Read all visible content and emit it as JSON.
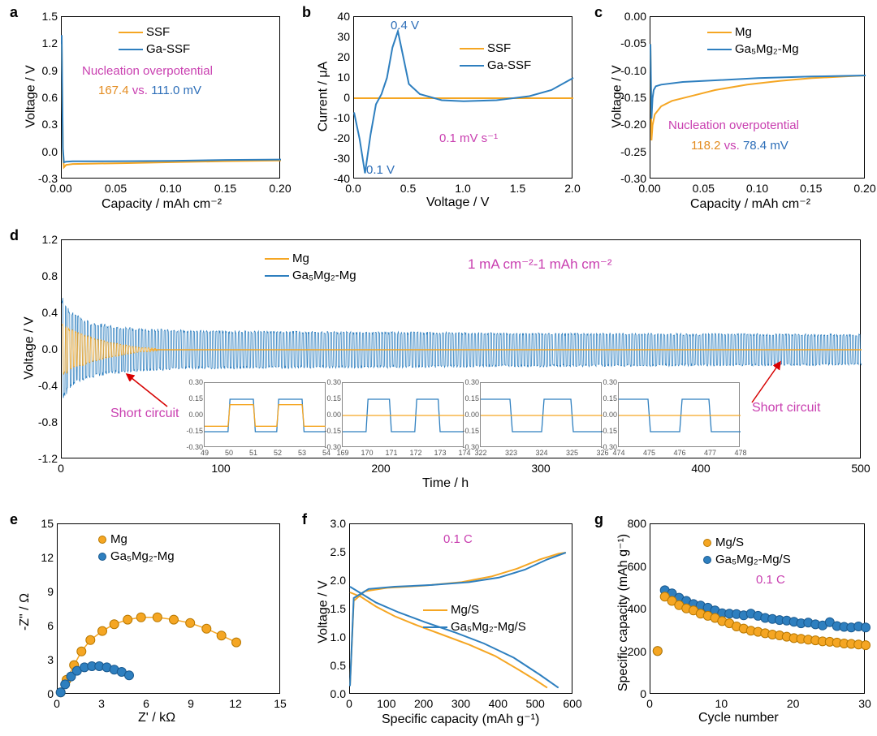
{
  "colors": {
    "orange": "#f5a623",
    "blue": "#2e7fbf",
    "magenta": "#c93fb0",
    "red": "#d60000",
    "blueText": "#2d6eb8",
    "orangeText": "#e38b1f",
    "black": "#000000"
  },
  "panel_a": {
    "letter": "a",
    "type": "line",
    "xlabel": "Capacity / mAh cm⁻²",
    "ylabel": "Voltage / V",
    "xlim": [
      0.0,
      0.2
    ],
    "xticks": [
      0.0,
      0.05,
      0.1,
      0.15,
      0.2
    ],
    "ylim": [
      -0.3,
      1.5
    ],
    "yticks": [
      -0.3,
      0.0,
      0.3,
      0.6,
      0.9,
      1.2,
      1.5
    ],
    "legend": [
      {
        "label": "SSF",
        "color": "#f5a623"
      },
      {
        "label": "Ga-SSF",
        "color": "#2e7fbf"
      }
    ],
    "annot_title": "Nucleation overpotential",
    "annot_vals": {
      "a": "167.4",
      "mid": " vs. ",
      "b": "111.0 mV"
    },
    "series": {
      "SSF": [
        [
          0.0,
          1.2
        ],
        [
          0.001,
          0.02
        ],
        [
          0.002,
          -0.167
        ],
        [
          0.004,
          -0.14
        ],
        [
          0.01,
          -0.13
        ],
        [
          0.03,
          -0.125
        ],
        [
          0.06,
          -0.12
        ],
        [
          0.1,
          -0.11
        ],
        [
          0.15,
          -0.098
        ],
        [
          0.2,
          -0.09
        ]
      ],
      "GaSSF": [
        [
          0.0,
          1.3
        ],
        [
          0.001,
          0.05
        ],
        [
          0.002,
          -0.111
        ],
        [
          0.004,
          -0.105
        ],
        [
          0.01,
          -0.1
        ],
        [
          0.03,
          -0.1
        ],
        [
          0.06,
          -0.098
        ],
        [
          0.1,
          -0.095
        ],
        [
          0.15,
          -0.085
        ],
        [
          0.2,
          -0.08
        ]
      ]
    }
  },
  "panel_b": {
    "letter": "b",
    "type": "line",
    "xlabel": "Voltage / V",
    "ylabel": "Current / μA",
    "xlim": [
      0,
      2.0
    ],
    "xticks": [
      0.0,
      0.5,
      1.0,
      1.5,
      2.0
    ],
    "ylim": [
      -40,
      40
    ],
    "yticks": [
      -40,
      -30,
      -20,
      -10,
      0,
      10,
      20,
      30,
      40
    ],
    "legend": [
      {
        "label": "SSF",
        "color": "#f5a623"
      },
      {
        "label": "Ga-SSF",
        "color": "#2e7fbf"
      }
    ],
    "rate_label": "0.1 mV s⁻¹",
    "peak_labels": {
      "ox": "0.4 V",
      "red": "0.1 V"
    },
    "series": {
      "SSF": [
        [
          0,
          0
        ],
        [
          0.5,
          0
        ],
        [
          1.0,
          0
        ],
        [
          1.5,
          0
        ],
        [
          2.0,
          0
        ]
      ],
      "GaSSF": [
        [
          0,
          -7
        ],
        [
          0.05,
          -20
        ],
        [
          0.1,
          -37
        ],
        [
          0.15,
          -18
        ],
        [
          0.2,
          -3
        ],
        [
          0.25,
          2
        ],
        [
          0.3,
          10
        ],
        [
          0.35,
          25
        ],
        [
          0.4,
          33
        ],
        [
          0.45,
          20
        ],
        [
          0.5,
          7
        ],
        [
          0.6,
          2
        ],
        [
          0.8,
          -1
        ],
        [
          1.0,
          -1.5
        ],
        [
          1.3,
          -1
        ],
        [
          1.6,
          1
        ],
        [
          1.8,
          4
        ],
        [
          2.0,
          10
        ]
      ]
    }
  },
  "panel_c": {
    "letter": "c",
    "type": "line",
    "xlabel": "Capacity / mAh cm⁻²",
    "ylabel": "Voltage / V",
    "xlim": [
      0.0,
      0.2
    ],
    "xticks": [
      0.0,
      0.05,
      0.1,
      0.15,
      0.2
    ],
    "ylim": [
      -0.3,
      0.0
    ],
    "yticks": [
      -0.3,
      -0.25,
      -0.2,
      -0.15,
      -0.1,
      -0.05,
      0.0
    ],
    "legend": [
      {
        "label": "Mg",
        "color": "#f5a623"
      },
      {
        "label": "Ga₅Mg₂-Mg",
        "color": "#2e7fbf"
      }
    ],
    "annot_title": "Nucleation overpotential",
    "annot_vals": {
      "a": "118.2",
      "mid": " vs. ",
      "b": "78.4 mV"
    },
    "series": {
      "Mg": [
        [
          0.0,
          -0.05
        ],
        [
          0.001,
          -0.228
        ],
        [
          0.002,
          -0.2
        ],
        [
          0.004,
          -0.18
        ],
        [
          0.01,
          -0.165
        ],
        [
          0.02,
          -0.155
        ],
        [
          0.04,
          -0.145
        ],
        [
          0.06,
          -0.135
        ],
        [
          0.09,
          -0.125
        ],
        [
          0.12,
          -0.118
        ],
        [
          0.15,
          -0.113
        ],
        [
          0.18,
          -0.11
        ],
        [
          0.2,
          -0.108
        ]
      ],
      "Ga": [
        [
          0.0,
          -0.05
        ],
        [
          0.001,
          -0.188
        ],
        [
          0.002,
          -0.15
        ],
        [
          0.003,
          -0.135
        ],
        [
          0.005,
          -0.128
        ],
        [
          0.01,
          -0.125
        ],
        [
          0.03,
          -0.12
        ],
        [
          0.06,
          -0.117
        ],
        [
          0.1,
          -0.113
        ],
        [
          0.15,
          -0.11
        ],
        [
          0.2,
          -0.108
        ]
      ]
    }
  },
  "panel_d": {
    "letter": "d",
    "type": "cycling",
    "xlabel": "Time / h",
    "ylabel": "Voltage / V",
    "xlim": [
      0,
      500
    ],
    "xticks": [
      0,
      100,
      200,
      300,
      400,
      500
    ],
    "ylim": [
      -1.2,
      1.2
    ],
    "yticks": [
      -1.2,
      -0.8,
      -0.4,
      0.0,
      0.4,
      0.8,
      1.2
    ],
    "legend": [
      {
        "label": "Mg",
        "color": "#f5a623"
      },
      {
        "label": "Ga₅Mg₂-Mg",
        "color": "#2e7fbf"
      }
    ],
    "cond_label": "1 mA cm⁻²-1 mAh cm⁻²",
    "short_label": "Short circuit",
    "mg_amp_profile": [
      [
        0,
        0.28
      ],
      [
        5,
        0.22
      ],
      [
        10,
        0.18
      ],
      [
        20,
        0.12
      ],
      [
        30,
        0.08
      ],
      [
        40,
        0.05
      ],
      [
        50,
        0.02
      ],
      [
        55,
        0.02
      ],
      [
        60,
        0.01
      ]
    ],
    "ga_amp_profile": [
      [
        0,
        0.55
      ],
      [
        5,
        0.4
      ],
      [
        15,
        0.3
      ],
      [
        30,
        0.25
      ],
      [
        50,
        0.22
      ],
      [
        80,
        0.2
      ],
      [
        150,
        0.19
      ],
      [
        250,
        0.18
      ],
      [
        350,
        0.17
      ],
      [
        500,
        0.16
      ]
    ],
    "insets": [
      {
        "xrange": [
          49,
          54
        ],
        "xticks": [
          49,
          50,
          51,
          52,
          53,
          54
        ],
        "ylim": [
          -0.3,
          0.3
        ],
        "yticks": [
          -0.3,
          -0.15,
          0.0,
          0.15,
          0.3
        ]
      },
      {
        "xrange": [
          169,
          174
        ],
        "xticks": [
          169,
          170,
          171,
          172,
          173,
          174
        ],
        "ylim": [
          -0.3,
          0.3
        ],
        "yticks": [
          -0.3,
          -0.15,
          0.0,
          0.15,
          0.3
        ]
      },
      {
        "xrange": [
          322,
          326
        ],
        "xticks": [
          322,
          323,
          324,
          325,
          326
        ],
        "ylim": [
          -0.3,
          0.3
        ],
        "yticks": [
          -0.3,
          -0.15,
          0.0,
          0.15,
          0.3
        ]
      },
      {
        "xrange": [
          474,
          478
        ],
        "xticks": [
          474,
          475,
          476,
          477,
          478
        ],
        "ylim": [
          -0.3,
          0.3
        ],
        "yticks": [
          -0.3,
          -0.15,
          0.0,
          0.15,
          0.3
        ]
      }
    ]
  },
  "panel_e": {
    "letter": "e",
    "type": "nyquist",
    "xlabel": "Z' / kΩ",
    "ylabel": "-Z\" / Ω",
    "xlim": [
      0,
      15
    ],
    "xticks": [
      0,
      3,
      6,
      9,
      12,
      15
    ],
    "ylim": [
      0,
      15
    ],
    "yticks": [
      0,
      3,
      6,
      9,
      12,
      15
    ],
    "legend": [
      {
        "label": "Mg",
        "color": "#f5a623"
      },
      {
        "label": "Ga₅Mg₂-Mg",
        "color": "#2e7fbf"
      }
    ],
    "series": {
      "Mg": [
        [
          0.2,
          0.2
        ],
        [
          0.6,
          1.3
        ],
        [
          1.1,
          2.6
        ],
        [
          1.6,
          3.8
        ],
        [
          2.2,
          4.8
        ],
        [
          3.0,
          5.6
        ],
        [
          3.8,
          6.2
        ],
        [
          4.7,
          6.6
        ],
        [
          5.6,
          6.8
        ],
        [
          6.7,
          6.8
        ],
        [
          7.8,
          6.6
        ],
        [
          8.9,
          6.3
        ],
        [
          10.0,
          5.8
        ],
        [
          11.0,
          5.2
        ],
        [
          12.0,
          4.6
        ]
      ],
      "Ga": [
        [
          0.2,
          0.2
        ],
        [
          0.5,
          0.9
        ],
        [
          0.9,
          1.6
        ],
        [
          1.3,
          2.1
        ],
        [
          1.8,
          2.4
        ],
        [
          2.3,
          2.5
        ],
        [
          2.8,
          2.5
        ],
        [
          3.3,
          2.4
        ],
        [
          3.8,
          2.2
        ],
        [
          4.3,
          2.0
        ],
        [
          4.8,
          1.7
        ]
      ]
    }
  },
  "panel_f": {
    "letter": "f",
    "type": "line",
    "xlabel": "Specific capacity (mAh g⁻¹)",
    "ylabel": "Voltage / V",
    "xlim": [
      0,
      600
    ],
    "xticks": [
      0,
      100,
      200,
      300,
      400,
      500,
      600
    ],
    "ylim": [
      0,
      3.0
    ],
    "yticks": [
      0.0,
      0.5,
      1.0,
      1.5,
      2.0,
      2.5,
      3.0
    ],
    "rate_label": "0.1 C",
    "legend": [
      {
        "label": "Mg/S",
        "color": "#f5a623"
      },
      {
        "label": "Ga₅Mg₂-Mg/S",
        "color": "#2e7fbf"
      }
    ],
    "series": {
      "Mg_dis": [
        [
          0,
          1.8
        ],
        [
          30,
          1.72
        ],
        [
          70,
          1.55
        ],
        [
          120,
          1.38
        ],
        [
          180,
          1.22
        ],
        [
          250,
          1.05
        ],
        [
          320,
          0.88
        ],
        [
          390,
          0.68
        ],
        [
          450,
          0.45
        ],
        [
          500,
          0.25
        ],
        [
          530,
          0.12
        ]
      ],
      "Mg_ch": [
        [
          0,
          0.15
        ],
        [
          10,
          1.65
        ],
        [
          40,
          1.82
        ],
        [
          100,
          1.88
        ],
        [
          200,
          1.92
        ],
        [
          300,
          1.98
        ],
        [
          380,
          2.08
        ],
        [
          450,
          2.22
        ],
        [
          510,
          2.38
        ],
        [
          560,
          2.48
        ],
        [
          580,
          2.5
        ]
      ],
      "Ga_dis": [
        [
          0,
          1.9
        ],
        [
          30,
          1.78
        ],
        [
          70,
          1.62
        ],
        [
          130,
          1.45
        ],
        [
          200,
          1.28
        ],
        [
          280,
          1.1
        ],
        [
          360,
          0.9
        ],
        [
          440,
          0.65
        ],
        [
          510,
          0.35
        ],
        [
          560,
          0.12
        ]
      ],
      "Ga_ch": [
        [
          0,
          0.15
        ],
        [
          10,
          1.7
        ],
        [
          50,
          1.86
        ],
        [
          120,
          1.9
        ],
        [
          220,
          1.93
        ],
        [
          320,
          1.98
        ],
        [
          400,
          2.06
        ],
        [
          470,
          2.2
        ],
        [
          530,
          2.38
        ],
        [
          580,
          2.5
        ]
      ]
    }
  },
  "panel_g": {
    "letter": "g",
    "type": "scatter",
    "xlabel": "Cycle number",
    "ylabel": "Specific capacity (mAh g⁻¹)",
    "xlim": [
      0,
      30
    ],
    "xticks": [
      0,
      10,
      20,
      30
    ],
    "ylim": [
      0,
      800
    ],
    "yticks": [
      0,
      200,
      400,
      600,
      800
    ],
    "rate_label": "0.1 C",
    "legend": [
      {
        "label": "Mg/S",
        "color": "#f5a623"
      },
      {
        "label": "Ga₅Mg₂-Mg/S",
        "color": "#2e7fbf"
      }
    ],
    "series": {
      "Mg": [
        [
          1,
          205
        ],
        [
          2,
          460
        ],
        [
          3,
          440
        ],
        [
          4,
          420
        ],
        [
          5,
          405
        ],
        [
          6,
          395
        ],
        [
          7,
          380
        ],
        [
          8,
          370
        ],
        [
          9,
          360
        ],
        [
          10,
          345
        ],
        [
          11,
          335
        ],
        [
          12,
          320
        ],
        [
          13,
          310
        ],
        [
          14,
          300
        ],
        [
          15,
          295
        ],
        [
          16,
          288
        ],
        [
          17,
          282
        ],
        [
          18,
          278
        ],
        [
          19,
          272
        ],
        [
          20,
          265
        ],
        [
          21,
          262
        ],
        [
          22,
          258
        ],
        [
          23,
          255
        ],
        [
          24,
          250
        ],
        [
          25,
          248
        ],
        [
          26,
          244
        ],
        [
          27,
          240
        ],
        [
          28,
          238
        ],
        [
          29,
          235
        ],
        [
          30,
          232
        ]
      ],
      "Ga": [
        [
          1,
          205
        ],
        [
          2,
          490
        ],
        [
          3,
          475
        ],
        [
          4,
          455
        ],
        [
          5,
          440
        ],
        [
          6,
          425
        ],
        [
          7,
          418
        ],
        [
          8,
          408
        ],
        [
          9,
          395
        ],
        [
          10,
          382
        ],
        [
          11,
          380
        ],
        [
          12,
          378
        ],
        [
          13,
          372
        ],
        [
          14,
          380
        ],
        [
          15,
          370
        ],
        [
          16,
          360
        ],
        [
          17,
          355
        ],
        [
          18,
          350
        ],
        [
          19,
          348
        ],
        [
          20,
          342
        ],
        [
          21,
          335
        ],
        [
          22,
          338
        ],
        [
          23,
          330
        ],
        [
          24,
          325
        ],
        [
          25,
          340
        ],
        [
          26,
          322
        ],
        [
          27,
          318
        ],
        [
          28,
          315
        ],
        [
          29,
          320
        ],
        [
          30,
          315
        ]
      ]
    }
  }
}
